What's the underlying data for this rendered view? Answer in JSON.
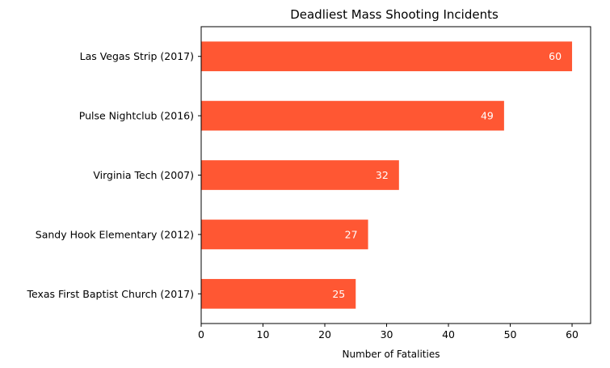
{
  "chart_data": {
    "type": "bar",
    "orientation": "horizontal",
    "title": "Deadliest Mass Shooting Incidents",
    "xlabel": "Number of Fatalities",
    "ylabel": "",
    "categories": [
      "Texas First Baptist Church (2017)",
      "Sandy Hook Elementary (2012)",
      "Virginia Tech (2007)",
      "Pulse Nightclub (2016)",
      "Las Vegas Strip (2017)"
    ],
    "values": [
      25,
      27,
      32,
      49,
      60
    ],
    "x_ticks": [
      0,
      10,
      20,
      30,
      40,
      50,
      60
    ],
    "xlim": [
      0,
      63
    ],
    "grid": false,
    "legend": "none",
    "colors": {
      "bar": "#ff5733",
      "value_label": "#ffffff",
      "axis": "#000000"
    }
  }
}
